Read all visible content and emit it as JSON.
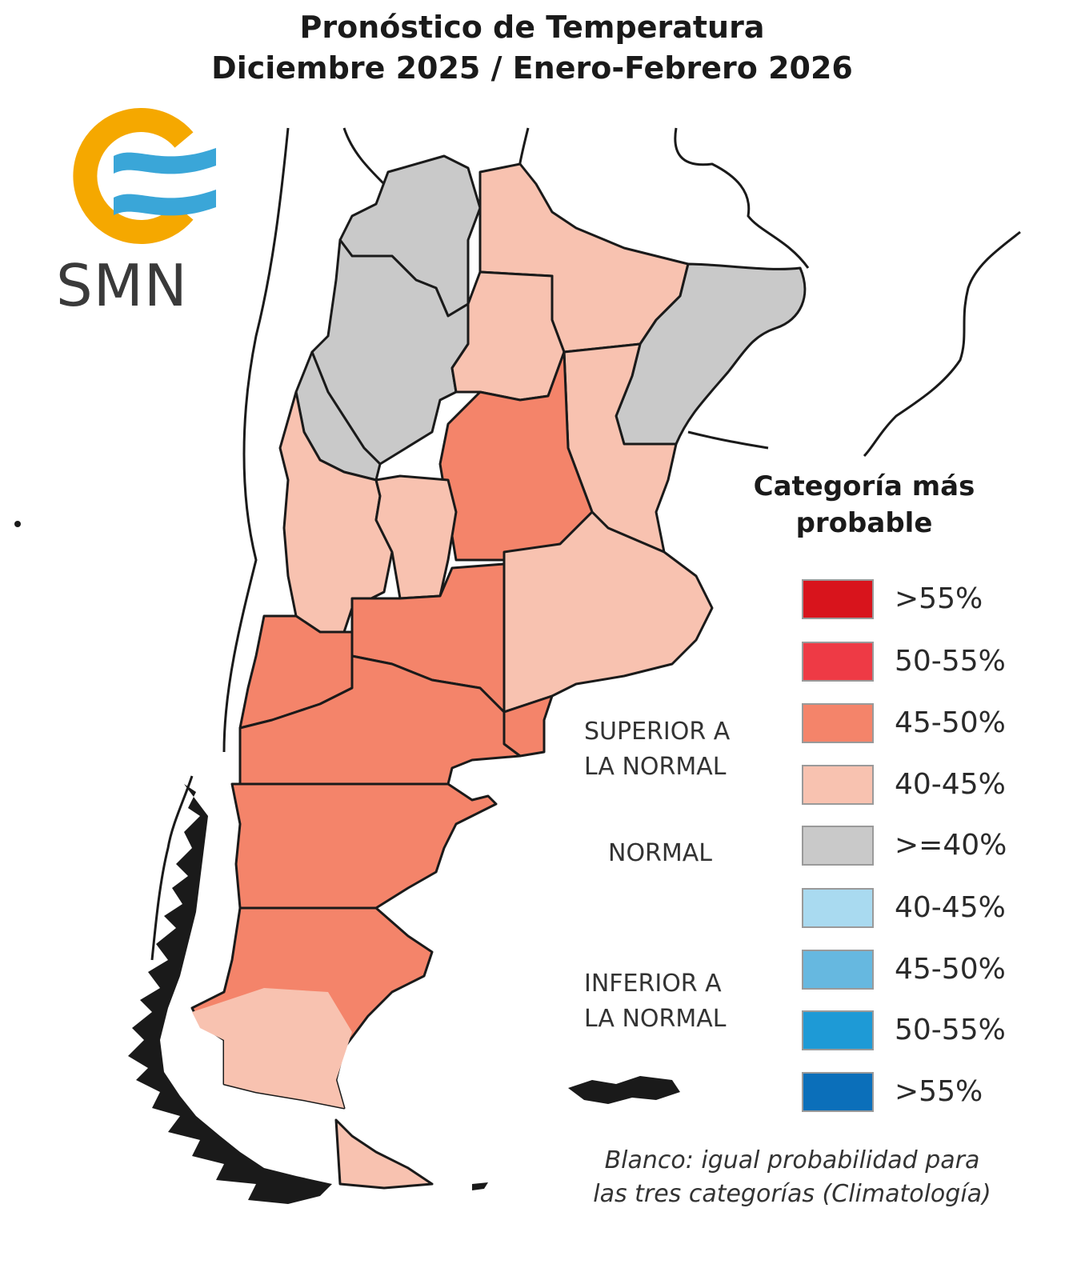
{
  "title": {
    "line1": "Pronóstico de Temperatura",
    "line2": "Diciembre 2025 / Enero-Febrero 2026"
  },
  "logo": {
    "text": "SMN",
    "colors": {
      "sun": "#f5a800",
      "stripes": "#3aa6d8"
    }
  },
  "legend": {
    "title_line1": "Categoría más",
    "title_line2": "probable",
    "groups": {
      "superior_line1": "SUPERIOR A",
      "superior_line2": "LA NORMAL",
      "normal": "NORMAL",
      "inferior_line1": "INFERIOR A",
      "inferior_line2": "LA NORMAL"
    },
    "items": [
      {
        "label": ">55%",
        "color": "#d8141c"
      },
      {
        "label": "50-55%",
        "color": "#ee3a45"
      },
      {
        "label": "45-50%",
        "color": "#f4846a"
      },
      {
        "label": "40-45%",
        "color": "#f8c2b0"
      },
      {
        "label": ">=40%",
        "color": "#c9c9c9"
      },
      {
        "label": "40-45%",
        "color": "#a9daf0"
      },
      {
        "label": "45-50%",
        "color": "#66b8e0"
      },
      {
        "label": "50-55%",
        "color": "#1e9ad6"
      },
      {
        "label": ">55%",
        "color": "#0b6fba"
      }
    ]
  },
  "footnote": {
    "line1": "Blanco: igual probabilidad para",
    "line2": "las tres categorías (Climatología)"
  },
  "map_colors": {
    "normal": "#c9c9c9",
    "superior_40_45": "#f8c2b0",
    "superior_45_50": "#f4846a",
    "border": "#1a1a1a"
  }
}
